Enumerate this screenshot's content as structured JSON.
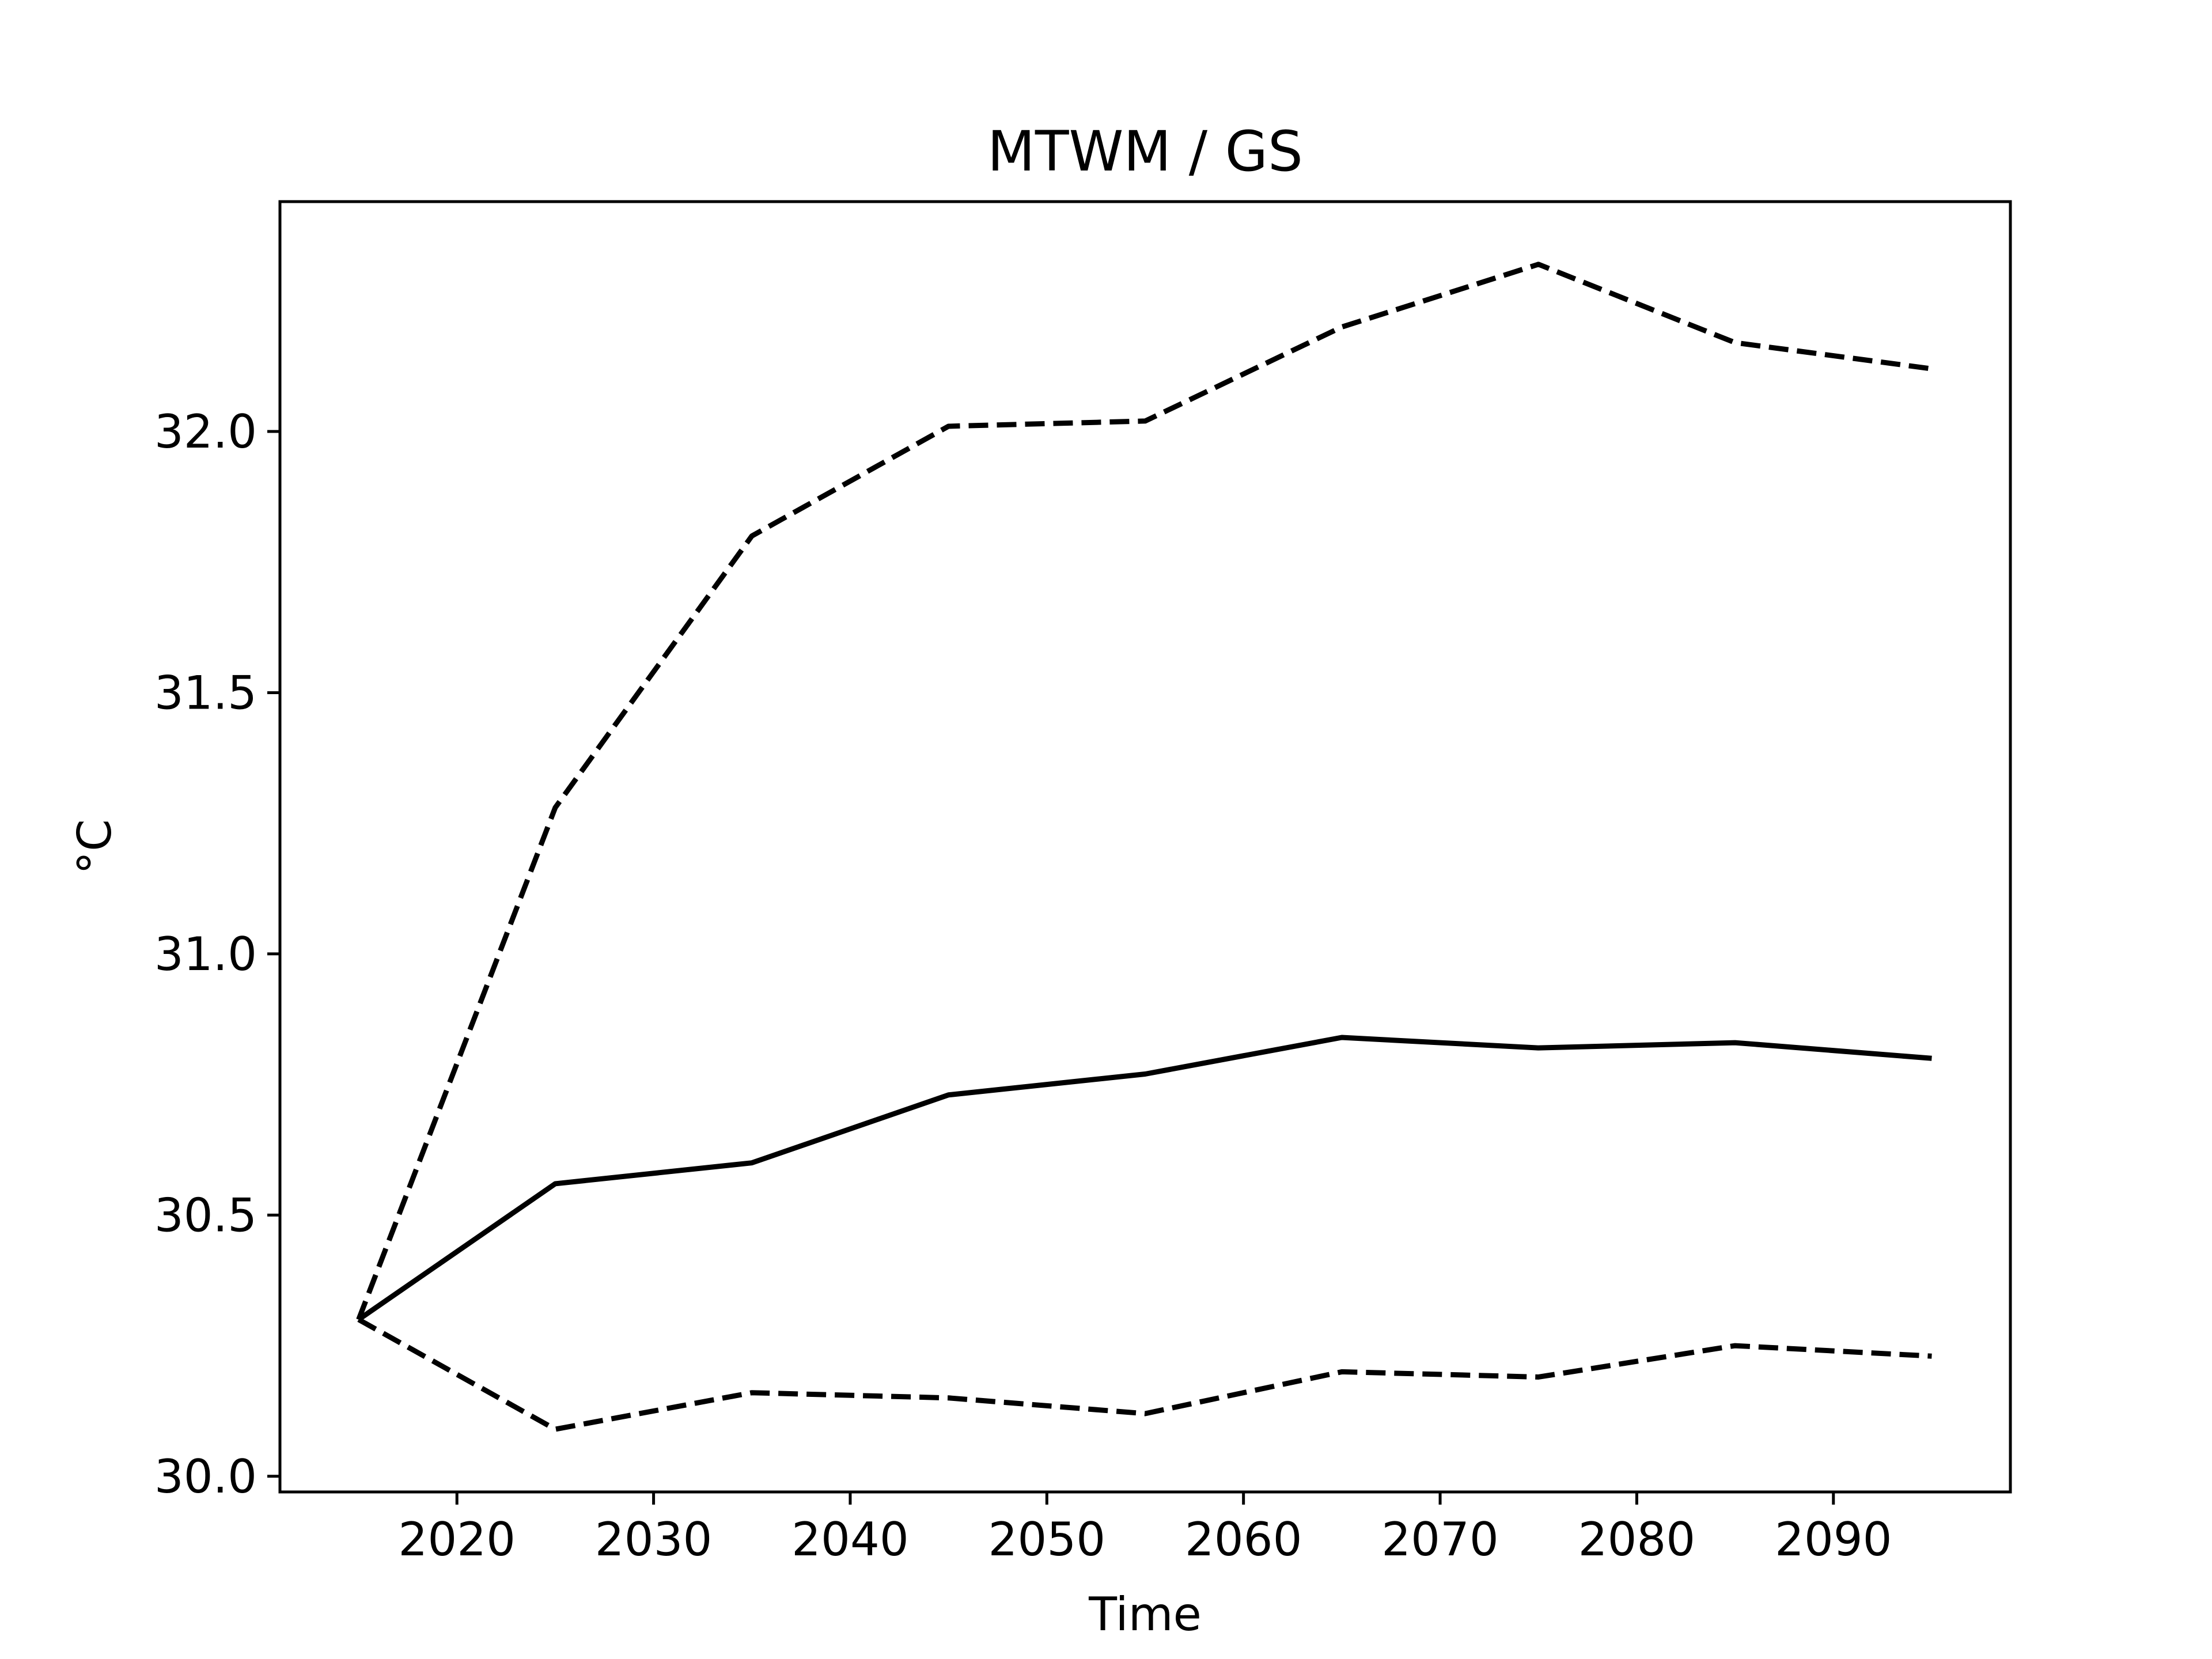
{
  "chart_data": {
    "type": "line",
    "title": "MTWM / GS",
    "xlabel": "Time",
    "ylabel": "°C",
    "x": [
      2015,
      2025,
      2035,
      2045,
      2055,
      2065,
      2075,
      2085,
      2095
    ],
    "xlim": [
      2011,
      2099
    ],
    "ylim": [
      29.97,
      32.44
    ],
    "xticks": [
      2020,
      2030,
      2040,
      2050,
      2060,
      2070,
      2080,
      2090
    ],
    "xtick_labels": [
      "2020",
      "2030",
      "2040",
      "2050",
      "2060",
      "2070",
      "2080",
      "2090"
    ],
    "yticks": [
      30.0,
      30.5,
      31.0,
      31.5,
      32.0
    ],
    "ytick_labels": [
      "30.0",
      "30.5",
      "31.0",
      "31.5",
      "32.0"
    ],
    "grid": false,
    "legend": "none",
    "series": [
      {
        "style": "dashed",
        "color": "#000000",
        "values": [
          30.3,
          31.28,
          31.8,
          32.01,
          32.02,
          32.2,
          32.32,
          32.17,
          32.12
        ]
      },
      {
        "style": "solid",
        "color": "#000000",
        "values": [
          30.3,
          30.56,
          30.6,
          30.73,
          30.77,
          30.84,
          30.82,
          30.83,
          30.8
        ]
      },
      {
        "style": "dashed",
        "color": "#000000",
        "values": [
          30.3,
          30.09,
          30.16,
          30.15,
          30.12,
          30.2,
          30.19,
          30.25,
          30.23
        ]
      }
    ]
  }
}
